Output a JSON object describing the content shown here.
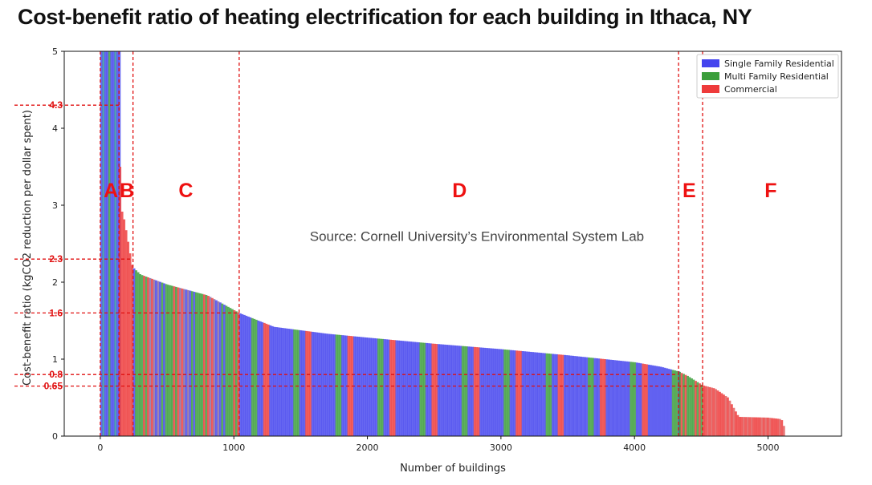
{
  "title": "Cost-benefit ratio of heating electrification for each building in Ithaca, NY",
  "chart_data": {
    "type": "bar",
    "xlabel": "Number of buildings",
    "ylabel": "Cost-benefit ratio (kgCO2 reduction per dollar spent)",
    "xlim": [
      -270,
      5550
    ],
    "ylim": [
      0,
      5
    ],
    "xticks": [
      "0",
      "1000",
      "2000",
      "3000",
      "4000",
      "5000"
    ],
    "xtick_values": [
      0,
      1000,
      2000,
      3000,
      4000,
      5000
    ],
    "yticks": [
      "0",
      "1",
      "2",
      "3",
      "4",
      "5"
    ],
    "ytick_values": [
      0,
      1,
      2,
      3,
      4,
      5
    ],
    "highlight_yticks": [
      {
        "label": "4.3",
        "value": 4.3
      },
      {
        "label": "2.3",
        "value": 2.3
      },
      {
        "label": "1.6",
        "value": 1.6
      },
      {
        "label": "0.8",
        "value": 0.8
      },
      {
        "label": "0.65",
        "value": 0.65
      }
    ],
    "segment_boundaries": [
      0,
      140,
      245,
      1040,
      4330,
      4510
    ],
    "segments": [
      "A",
      "B",
      "C",
      "D",
      "E",
      "F"
    ],
    "segment_label_x": [
      80,
      200,
      640,
      2690,
      4410,
      5020
    ],
    "segment_label_y": 3.2,
    "annotation": "Source: Cornell University’s Environmental System Lab",
    "annotation_pos": [
      2820,
      2.6
    ],
    "legend": {
      "position": "top-right",
      "entries": [
        {
          "name": "Single Family Residential",
          "color": "#4444ee"
        },
        {
          "name": "Multi Family Residential",
          "color": "#3a9e3a"
        },
        {
          "name": "Commercial",
          "color": "#ee3b3b"
        }
      ]
    },
    "curve": {
      "x": [
        0,
        140,
        150,
        180,
        240,
        300,
        500,
        800,
        1040,
        1300,
        1700,
        2000,
        2500,
        3000,
        3500,
        4000,
        4200,
        4330,
        4400,
        4510,
        4600,
        4700,
        4780,
        5000,
        5100,
        5120
      ],
      "y": [
        5.0,
        5.0,
        3.0,
        2.8,
        2.2,
        2.1,
        1.97,
        1.83,
        1.6,
        1.42,
        1.33,
        1.28,
        1.2,
        1.13,
        1.05,
        0.96,
        0.9,
        0.84,
        0.78,
        0.66,
        0.62,
        0.5,
        0.25,
        0.24,
        0.22,
        0.12
      ]
    },
    "color_runs": [
      {
        "x0": 0,
        "x1": 140,
        "colors": [
          "#4444ee",
          "#3a9e3a",
          "#4444ee",
          "#2f8fa0"
        ]
      },
      {
        "x0": 140,
        "x1": 245,
        "colors": [
          "#ee3b3b"
        ]
      },
      {
        "x0": 245,
        "x1": 1040,
        "colors": [
          "#3a9e3a",
          "#4444ee",
          "#ee3b3b",
          "#3a9e3a",
          "#8a6aa0"
        ]
      },
      {
        "x0": 1040,
        "x1": 4330,
        "colors": [
          "#4444ee",
          "#4444ee",
          "#4444ee",
          "#4444ee",
          "#3a9e3a",
          "#4444ee",
          "#ee3b3b"
        ]
      },
      {
        "x0": 4330,
        "x1": 4510,
        "colors": [
          "#3a9e3a",
          "#ee3b3b",
          "#3a9e3a"
        ]
      },
      {
        "x0": 4510,
        "x1": 5120,
        "colors": [
          "#ee3b3b",
          "#ee3b3b",
          "#e05a5a"
        ]
      }
    ]
  }
}
